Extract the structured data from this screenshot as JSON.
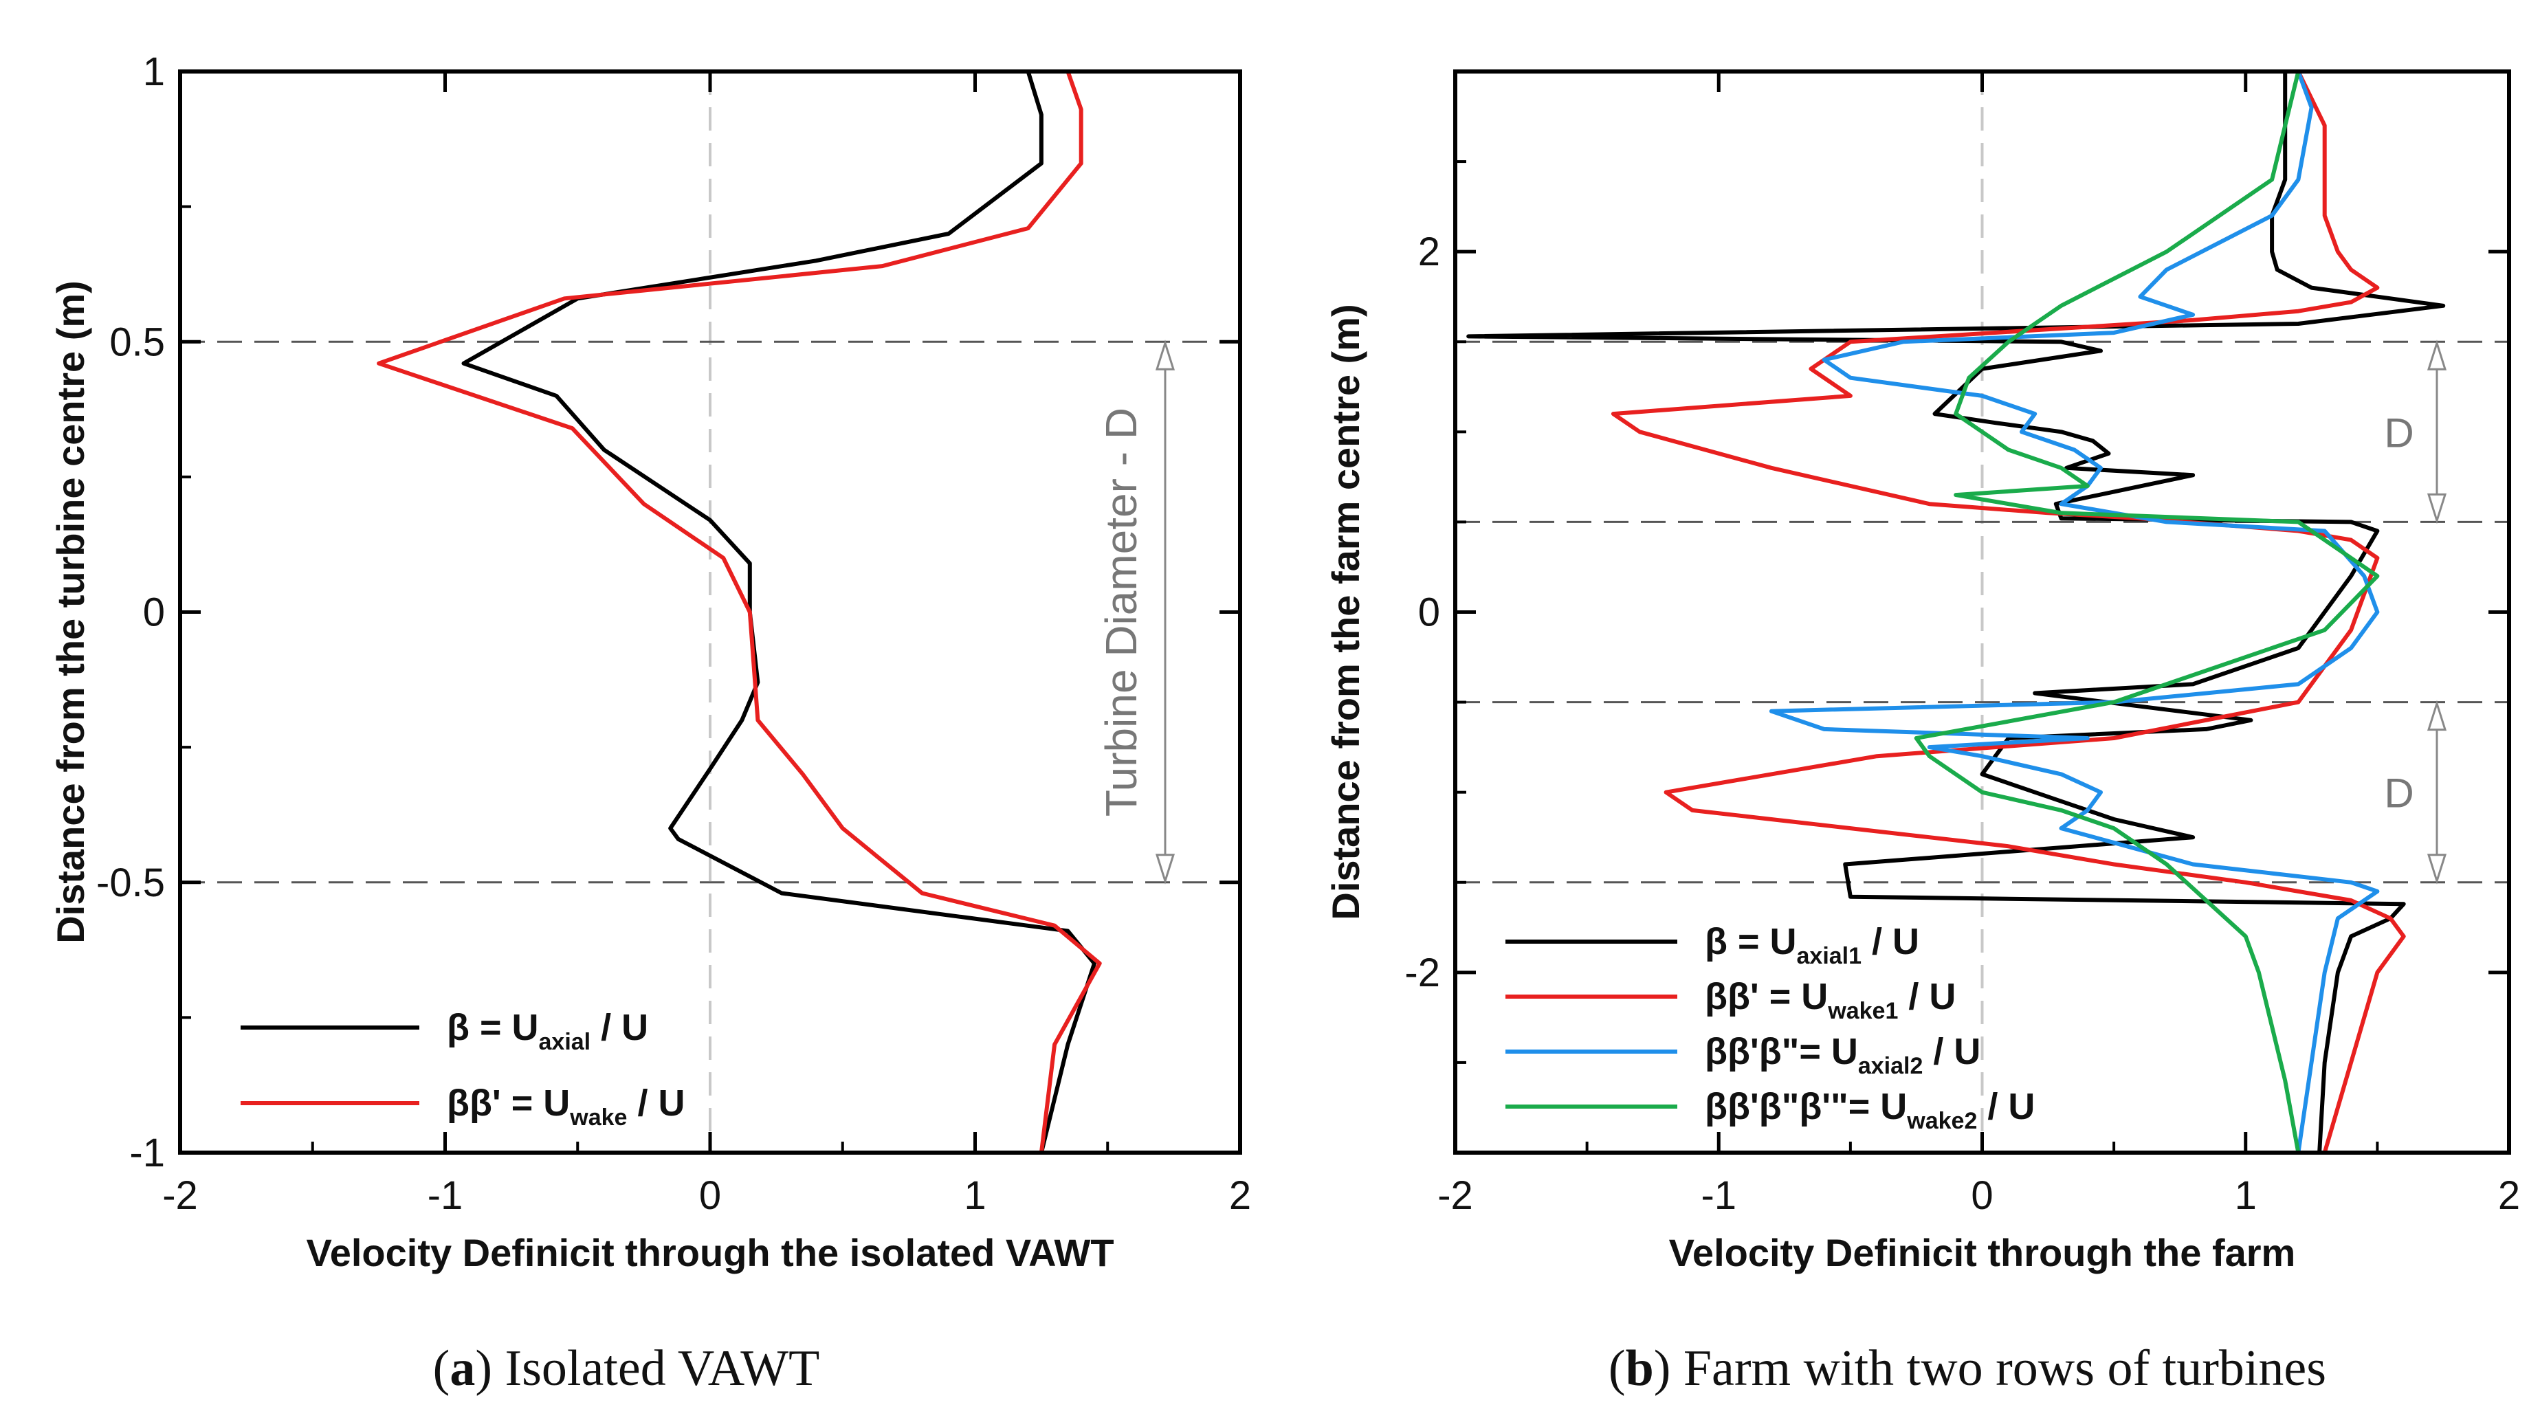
{
  "chart_data": [
    {
      "type": "line",
      "panel": "a",
      "xlabel": "Velocity Definicit through the isolated VAWT",
      "ylabel": "Distance from the turbine centre (m)",
      "xlim": [
        -2,
        2
      ],
      "ylim": [
        -1,
        1
      ],
      "xticks": [
        "-2",
        "-1",
        "0",
        "1",
        "2"
      ],
      "yticks": [
        "-1",
        "-0.5",
        "0",
        "0.5",
        "1"
      ],
      "xtick_values": [
        -2,
        -1,
        0,
        1,
        2
      ],
      "ytick_values": [
        -1,
        -0.5,
        0,
        0.5,
        1
      ],
      "reference_lines": {
        "horizontal": [
          0.5,
          -0.5
        ],
        "vertical": [
          0
        ]
      },
      "annotation": {
        "text": "Turbine Diameter - D",
        "y_from": 0.5,
        "y_to": -0.5
      },
      "caption": {
        "bold": "a",
        "text": "Isolated VAWT"
      },
      "series": [
        {
          "name": "β = U_axial / U",
          "legend_main": "β = U",
          "legend_sub": "axial",
          "legend_tail": " / U",
          "color": "#000000",
          "x": [
            1.2,
            1.25,
            1.25,
            0.9,
            0.4,
            -0.5,
            -0.93,
            -0.58,
            -0.4,
            0.0,
            0.15,
            0.15,
            0.18,
            0.12,
            0.0,
            -0.15,
            -0.12,
            0.27,
            1.35,
            1.45,
            1.35,
            1.25
          ],
          "y": [
            1.0,
            0.92,
            0.83,
            0.7,
            0.65,
            0.58,
            0.46,
            0.4,
            0.3,
            0.17,
            0.09,
            0.0,
            -0.13,
            -0.2,
            -0.29,
            -0.4,
            -0.42,
            -0.52,
            -0.59,
            -0.65,
            -0.8,
            -1.0
          ]
        },
        {
          "name": "ββ' = U_wake / U",
          "legend_main": "ββ' = U",
          "legend_sub": "wake",
          "legend_tail": " / U",
          "color": "#e8201f",
          "x": [
            1.35,
            1.4,
            1.4,
            1.2,
            0.65,
            -0.55,
            -1.25,
            -0.52,
            -0.25,
            0.05,
            0.15,
            0.18,
            0.35,
            0.5,
            0.8,
            1.3,
            1.47,
            1.3,
            1.25
          ],
          "y": [
            1.0,
            0.93,
            0.83,
            0.71,
            0.64,
            0.58,
            0.46,
            0.34,
            0.2,
            0.1,
            0.0,
            -0.2,
            -0.3,
            -0.4,
            -0.52,
            -0.58,
            -0.65,
            -0.8,
            -1.0
          ]
        }
      ]
    },
    {
      "type": "line",
      "panel": "b",
      "xlabel": "Velocity Definicit through the farm",
      "ylabel": "Distance from the farm centre (m)",
      "xlim": [
        -2,
        2
      ],
      "ylim": [
        -3,
        3
      ],
      "xticks": [
        "-2",
        "-1",
        "0",
        "1",
        "2"
      ],
      "yticks": [
        "-2",
        "0",
        "2"
      ],
      "xtick_values": [
        -2,
        -1,
        0,
        1,
        2
      ],
      "ytick_values": [
        -2,
        0,
        2
      ],
      "reference_lines": {
        "horizontal": [
          1.5,
          0.5,
          -0.5,
          -1.5
        ],
        "vertical": [
          0
        ]
      },
      "annotations": [
        {
          "text": "D",
          "y_from": 1.5,
          "y_to": 0.5
        },
        {
          "text": "D",
          "y_from": -0.5,
          "y_to": -1.5
        }
      ],
      "caption": {
        "bold": "b",
        "text": "Farm with two rows of turbines"
      },
      "series": [
        {
          "name": "β = U_axial1 / U",
          "legend_main": "β = U",
          "legend_sub": "axial1",
          "legend_tail": " / U",
          "color": "#000000",
          "x": [
            1.15,
            1.15,
            1.15,
            1.1,
            1.1,
            1.12,
            1.25,
            1.75,
            1.2,
            -1.95,
            0.3,
            0.45,
            0.0,
            -0.18,
            0.05,
            0.3,
            0.42,
            0.48,
            0.32,
            0.8,
            0.28,
            0.3,
            1.4,
            1.5,
            1.4,
            1.3,
            1.2,
            0.8,
            0.2,
            1.02,
            0.85,
            0.1,
            0.0,
            0.2,
            0.3,
            0.4,
            0.5,
            0.8,
            -0.52,
            -0.5,
            1.6,
            1.55,
            1.4,
            1.35,
            1.3,
            1.28
          ],
          "y": [
            3.0,
            2.6,
            2.4,
            2.2,
            2.0,
            1.9,
            1.8,
            1.7,
            1.6,
            1.53,
            1.5,
            1.45,
            1.35,
            1.1,
            1.05,
            1.0,
            0.95,
            0.88,
            0.8,
            0.76,
            0.6,
            0.52,
            0.5,
            0.45,
            0.2,
            0.0,
            -0.2,
            -0.4,
            -0.45,
            -0.6,
            -0.65,
            -0.7,
            -0.9,
            -1.0,
            -1.05,
            -1.1,
            -1.15,
            -1.25,
            -1.4,
            -1.58,
            -1.62,
            -1.7,
            -1.8,
            -2.0,
            -2.5,
            -3.0
          ]
        },
        {
          "name": "ββ' = U_wake1 / U",
          "legend_main": "ββ' = U",
          "legend_sub": "wake1",
          "legend_tail": " / U",
          "color": "#e8201f",
          "x": [
            1.2,
            1.3,
            1.3,
            1.3,
            1.35,
            1.4,
            1.5,
            1.4,
            1.2,
            0.8,
            -0.5,
            -0.65,
            -0.5,
            -1.4,
            -1.3,
            -0.8,
            -0.2,
            0.25,
            0.6,
            1.2,
            1.4,
            1.5,
            1.45,
            1.4,
            1.3,
            1.2,
            0.5,
            -0.4,
            -1.2,
            -1.1,
            -0.5,
            0.1,
            0.5,
            1.0,
            1.4,
            1.55,
            1.6,
            1.5,
            1.4,
            1.3
          ],
          "y": [
            3.0,
            2.7,
            2.4,
            2.2,
            2.0,
            1.9,
            1.8,
            1.72,
            1.67,
            1.62,
            1.5,
            1.35,
            1.2,
            1.1,
            1.0,
            0.8,
            0.6,
            0.55,
            0.52,
            0.45,
            0.4,
            0.3,
            0.1,
            -0.1,
            -0.3,
            -0.5,
            -0.7,
            -0.8,
            -1.0,
            -1.1,
            -1.2,
            -1.3,
            -1.4,
            -1.5,
            -1.6,
            -1.7,
            -1.8,
            -2.0,
            -2.5,
            -3.0
          ]
        },
        {
          "name": "ββ'β\" = U_axial2 / U",
          "legend_main": "ββ'β\"= U",
          "legend_sub": "axial2",
          "legend_tail": " / U",
          "color": "#1f8fea",
          "x": [
            1.2,
            1.25,
            1.2,
            1.1,
            0.7,
            0.6,
            0.8,
            0.5,
            -0.3,
            -0.6,
            -0.5,
            0.0,
            0.2,
            0.15,
            0.35,
            0.45,
            0.4,
            0.3,
            0.5,
            0.7,
            1.3,
            1.45,
            1.5,
            1.4,
            1.2,
            0.5,
            -0.8,
            -0.6,
            0.4,
            -0.2,
            0.0,
            0.3,
            0.45,
            0.4,
            0.3,
            0.55,
            0.8,
            1.4,
            1.5,
            1.35,
            1.3,
            1.2
          ],
          "y": [
            3.0,
            2.8,
            2.4,
            2.2,
            1.9,
            1.75,
            1.65,
            1.55,
            1.5,
            1.4,
            1.3,
            1.2,
            1.1,
            1.0,
            0.9,
            0.8,
            0.7,
            0.6,
            0.55,
            0.5,
            0.45,
            0.2,
            0.0,
            -0.2,
            -0.4,
            -0.5,
            -0.55,
            -0.65,
            -0.7,
            -0.75,
            -0.8,
            -0.9,
            -1.0,
            -1.1,
            -1.2,
            -1.3,
            -1.4,
            -1.5,
            -1.55,
            -1.7,
            -2.0,
            -3.0
          ]
        },
        {
          "name": "ββ'β\"β'\" = U_wake2 / U",
          "legend_main": "ββ'β\"β'\"= U",
          "legend_sub": "wake2",
          "legend_tail": " / U",
          "color": "#1aab4b",
          "x": [
            1.2,
            1.1,
            0.7,
            0.3,
            0.1,
            -0.05,
            -0.1,
            0.0,
            0.1,
            0.3,
            0.4,
            -0.1,
            0.3,
            1.2,
            1.4,
            1.5,
            1.3,
            0.5,
            -0.25,
            -0.2,
            0.0,
            0.3,
            0.5,
            0.7,
            0.85,
            1.0,
            1.05,
            1.1,
            1.15,
            1.2
          ],
          "y": [
            3.0,
            2.4,
            2.0,
            1.7,
            1.5,
            1.3,
            1.1,
            1.0,
            0.9,
            0.8,
            0.7,
            0.65,
            0.55,
            0.5,
            0.3,
            0.2,
            -0.1,
            -0.5,
            -0.7,
            -0.8,
            -1.0,
            -1.1,
            -1.2,
            -1.4,
            -1.6,
            -1.8,
            -2.0,
            -2.3,
            -2.6,
            -3.0
          ]
        }
      ]
    }
  ]
}
